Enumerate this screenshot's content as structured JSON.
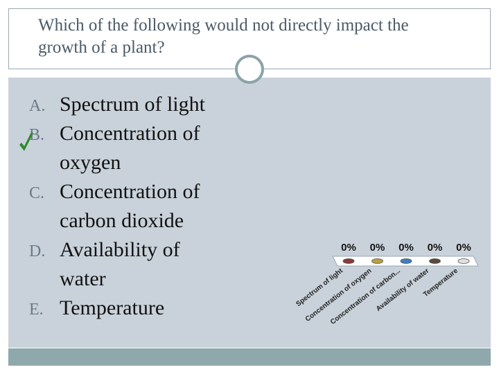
{
  "question": {
    "title": "Which of the following would not directly impact the growth of a plant?",
    "title_line1": "Which of the following would not directly impact the",
    "title_line2": "growth of a plant?"
  },
  "answers": [
    {
      "letter": "A.",
      "lines": [
        "Spectrum of light"
      ]
    },
    {
      "letter": "B.",
      "lines": [
        "Concentration of",
        "oxygen"
      ],
      "correct": true
    },
    {
      "letter": "C.",
      "lines": [
        "Concentration of",
        "carbon dioxide"
      ]
    },
    {
      "letter": "D.",
      "lines": [
        "Availability of",
        "water"
      ]
    },
    {
      "letter": "E.",
      "lines": [
        "Temperature"
      ]
    }
  ],
  "check": {
    "icon": "checkmark-icon",
    "color": "#2e8b2e"
  },
  "colors": {
    "panel": "#c9d2da",
    "footer": "#8fa8ab",
    "title_text": "#4a5a66"
  },
  "chart_data": {
    "type": "bar",
    "categories": [
      "Spectrum of light",
      "Concentration of oxygen",
      "Concentration of carbon...",
      "Availability of water",
      "Temperature"
    ],
    "values": [
      0,
      0,
      0,
      0,
      0
    ],
    "value_labels": [
      "0%",
      "0%",
      "0%",
      "0%",
      "0%"
    ],
    "ylim": [
      0,
      100
    ],
    "bar_colors": [
      "#8b3a3a",
      "#b8a040",
      "#3f7fbf",
      "#5a4a3a",
      "#e0e0e0"
    ],
    "grid": false
  }
}
